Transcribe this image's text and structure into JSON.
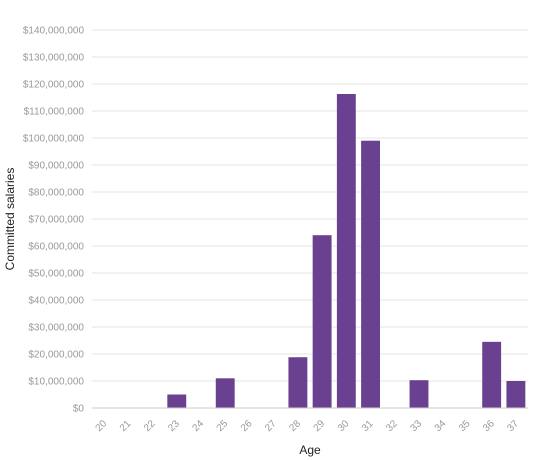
{
  "chart_data": {
    "type": "bar",
    "title": "",
    "xlabel": "Age",
    "ylabel": "Committed salaries",
    "categories": [
      "20",
      "21",
      "22",
      "23",
      "24",
      "25",
      "26",
      "27",
      "28",
      "29",
      "30",
      "31",
      "32",
      "33",
      "34",
      "35",
      "36",
      "37"
    ],
    "values": [
      0,
      0,
      0,
      5000000,
      0,
      11000000,
      0,
      0,
      18800000,
      64000000,
      116300000,
      99000000,
      0,
      10300000,
      0,
      0,
      24500000,
      10000000
    ],
    "ylim": [
      0,
      140000000
    ],
    "ytick_step": 10000000,
    "ytick_labels": [
      "$0",
      "$10,000,000",
      "$20,000,000",
      "$30,000,000",
      "$40,000,000",
      "$50,000,000",
      "$60,000,000",
      "$70,000,000",
      "$80,000,000",
      "$90,000,000",
      "$100,000,000",
      "$110,000,000",
      "$120,000,000",
      "$130,000,000",
      "$140,000,000"
    ],
    "grid": true,
    "bar_color": "#6a4190",
    "grid_color": "#e6e6e6",
    "tick_label_color": "#999999"
  }
}
